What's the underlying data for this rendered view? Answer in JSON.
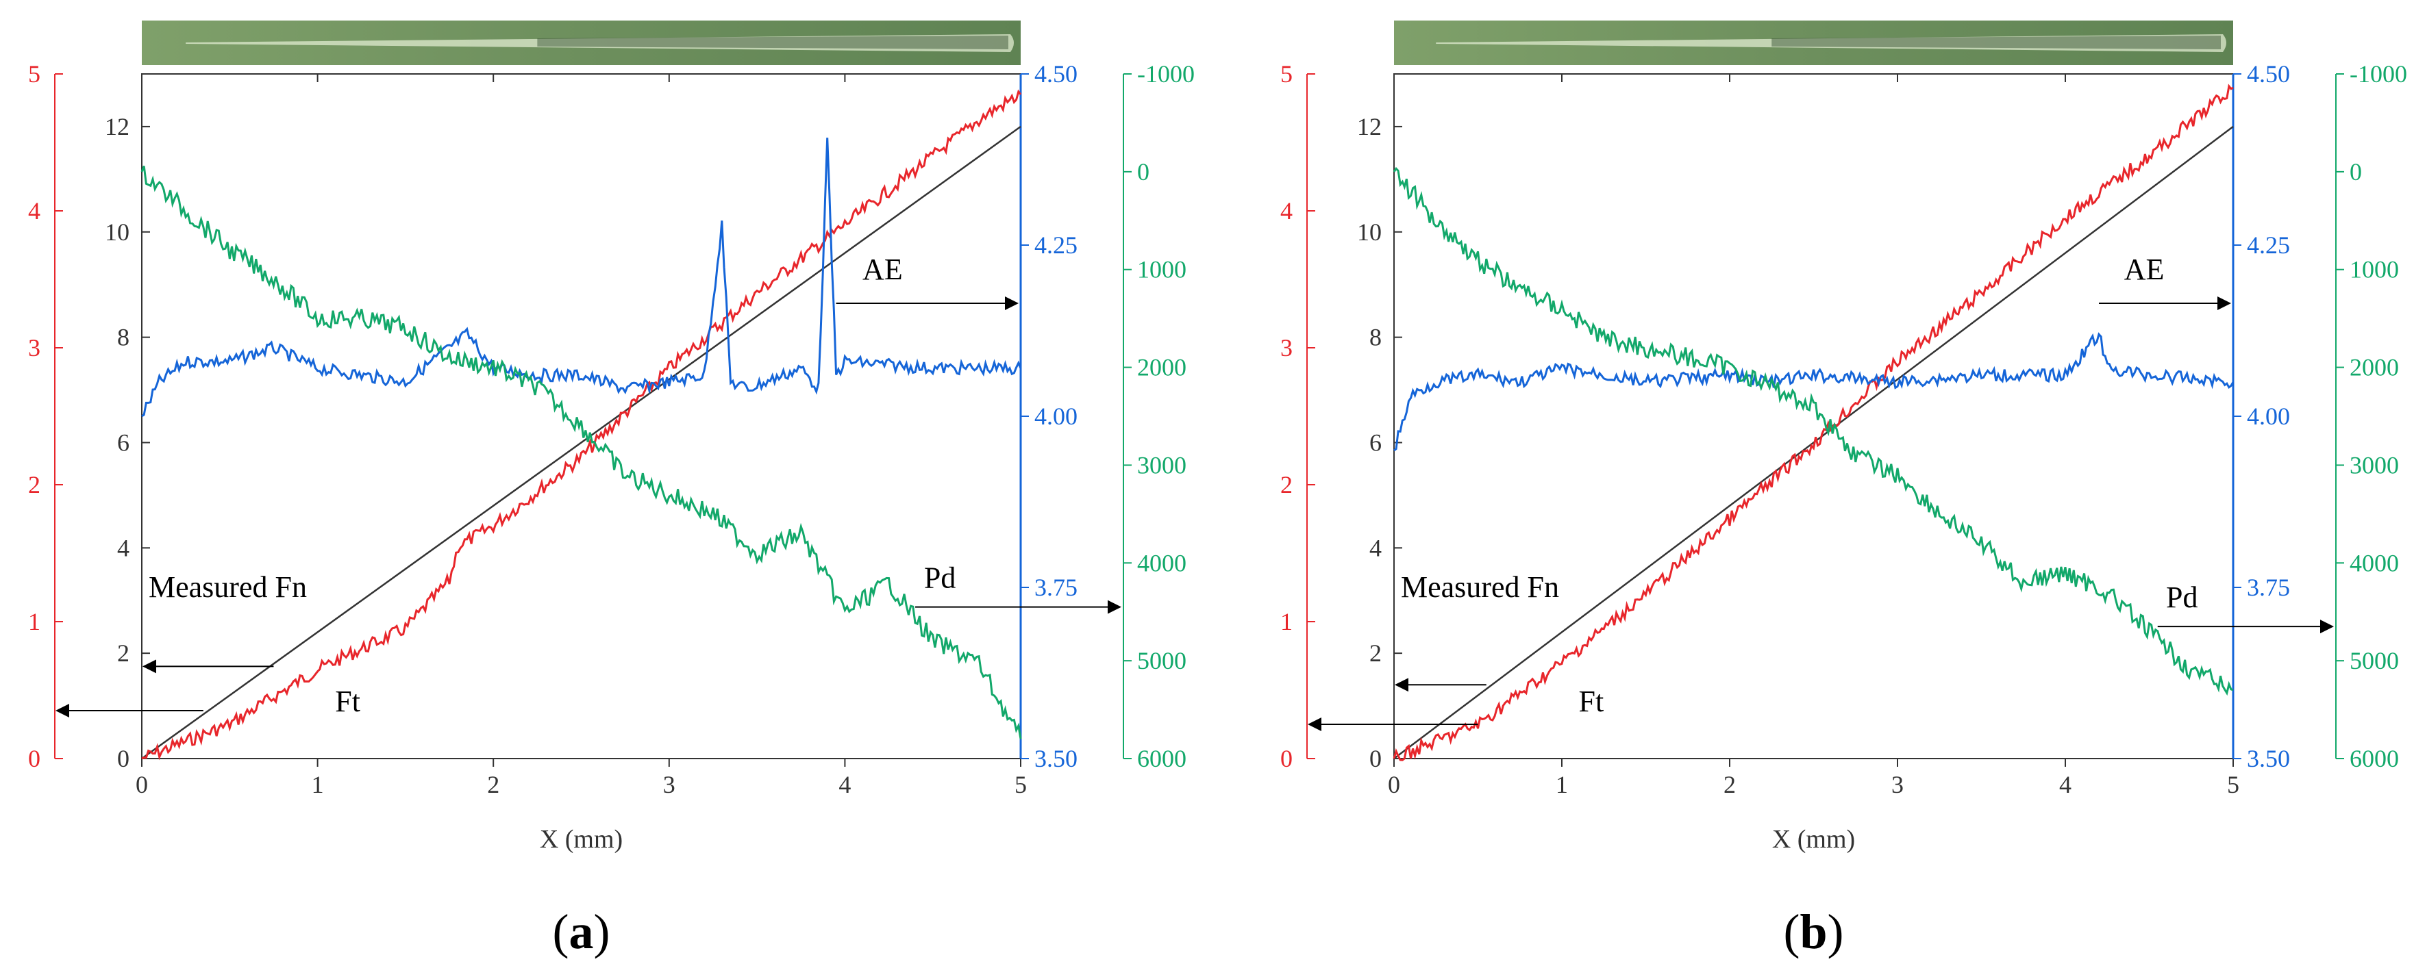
{
  "colors": {
    "ft": "#e8262b",
    "fn": "#333333",
    "ae": "#1565d8",
    "pd": "#12a86a",
    "axis": "#333333"
  },
  "chart_data": [
    {
      "type": "line",
      "panel_label": "a",
      "xlabel": "X (mm)",
      "xlim": [
        0,
        5
      ],
      "x_ticks": [
        "0",
        "1",
        "2",
        "3",
        "4",
        "5"
      ],
      "axes": {
        "fn": {
          "ylim": [
            0,
            13
          ],
          "ticks": [
            "0",
            "2",
            "4",
            "6",
            "8",
            "10",
            "12"
          ]
        },
        "ft": {
          "ylim": [
            0,
            5
          ],
          "ticks": [
            "0",
            "1",
            "2",
            "3",
            "4",
            "5"
          ]
        },
        "ae": {
          "ylim": [
            3.5,
            4.5
          ],
          "ticks": [
            "3.50",
            "3.75",
            "4.00",
            "4.25",
            "4.50"
          ]
        },
        "pd": {
          "ylim": [
            -1000,
            6000
          ],
          "reversed": true,
          "ticks": [
            "-1000",
            "0",
            "1000",
            "2000",
            "3000",
            "4000",
            "5000",
            "6000"
          ]
        }
      },
      "annotations": [
        "Measured Fn",
        "Ft",
        "AE",
        "Pd"
      ],
      "series": [
        {
          "name": "Measured Fn",
          "axis": "fn",
          "x": [
            0,
            5
          ],
          "y": [
            0,
            12
          ]
        },
        {
          "name": "Ft",
          "axis": "ft",
          "x": [
            0,
            0.5,
            1,
            1.5,
            1.75,
            1.8,
            2,
            2.5,
            3,
            3.5,
            4,
            4.5,
            4.8,
            5
          ],
          "y": [
            0,
            0.25,
            0.65,
            0.95,
            1.3,
            1.55,
            1.7,
            2.2,
            2.85,
            3.4,
            3.9,
            4.4,
            4.7,
            4.85
          ]
        },
        {
          "name": "AE",
          "axis": "ae",
          "x": [
            0,
            0.1,
            0.25,
            0.5,
            0.75,
            1,
            1.25,
            1.5,
            1.85,
            2,
            2.25,
            2.5,
            2.75,
            3,
            3.2,
            3.3,
            3.35,
            3.45,
            3.75,
            3.85,
            3.9,
            3.95,
            4,
            4.5,
            5
          ],
          "y": [
            4.0,
            4.05,
            4.08,
            4.08,
            4.1,
            4.07,
            4.06,
            4.05,
            4.12,
            4.07,
            4.06,
            4.06,
            4.04,
            4.05,
            4.06,
            4.28,
            4.05,
            4.04,
            4.07,
            4.04,
            4.4,
            4.06,
            4.08,
            4.07,
            4.07
          ]
        },
        {
          "name": "Pd",
          "axis": "pd",
          "x": [
            0,
            0.25,
            0.5,
            0.75,
            1,
            1.25,
            1.5,
            1.75,
            2,
            2.25,
            2.5,
            2.75,
            3,
            3.25,
            3.5,
            3.75,
            4,
            4.25,
            4.5,
            4.75,
            5
          ],
          "y": [
            0,
            400,
            800,
            1100,
            1500,
            1500,
            1600,
            1900,
            2000,
            2200,
            2600,
            3100,
            3300,
            3500,
            3900,
            3700,
            4500,
            4200,
            4800,
            5000,
            5800
          ]
        }
      ]
    },
    {
      "type": "line",
      "panel_label": "b",
      "xlabel": "X (mm)",
      "xlim": [
        0,
        5
      ],
      "x_ticks": [
        "0",
        "1",
        "2",
        "3",
        "4",
        "5"
      ],
      "axes": {
        "fn": {
          "ylim": [
            0,
            13
          ],
          "ticks": [
            "0",
            "2",
            "4",
            "6",
            "8",
            "10",
            "12"
          ]
        },
        "ft": {
          "ylim": [
            0,
            5
          ],
          "ticks": [
            "0",
            "1",
            "2",
            "3",
            "4",
            "5"
          ]
        },
        "ae": {
          "ylim": [
            3.5,
            4.5
          ],
          "ticks": [
            "3.50",
            "3.75",
            "4.00",
            "4.25",
            "4.50"
          ]
        },
        "pd": {
          "ylim": [
            -1000,
            6000
          ],
          "reversed": true,
          "ticks": [
            "-1000",
            "0",
            "1000",
            "2000",
            "3000",
            "4000",
            "5000",
            "6000"
          ]
        }
      },
      "annotations": [
        "Measured Fn",
        "Ft",
        "AE",
        "Pd"
      ],
      "series": [
        {
          "name": "Measured Fn",
          "axis": "fn",
          "x": [
            0,
            5
          ],
          "y": [
            0,
            12
          ]
        },
        {
          "name": "Ft",
          "axis": "ft",
          "x": [
            0,
            0.5,
            1,
            1.5,
            2,
            2.5,
            3,
            3.5,
            4,
            4.5,
            4.8,
            5
          ],
          "y": [
            0,
            0.25,
            0.7,
            1.2,
            1.75,
            2.3,
            2.9,
            3.4,
            3.95,
            4.4,
            4.7,
            4.9
          ]
        },
        {
          "name": "AE",
          "axis": "ae",
          "x": [
            0,
            0.1,
            0.25,
            0.5,
            0.75,
            1,
            1.5,
            2,
            2.25,
            2.5,
            3,
            3.5,
            4,
            4.2,
            4.25,
            4.5,
            5
          ],
          "y": [
            3.95,
            4.03,
            4.05,
            4.06,
            4.05,
            4.07,
            4.05,
            4.06,
            4.05,
            4.06,
            4.05,
            4.06,
            4.06,
            4.12,
            4.07,
            4.06,
            4.05
          ]
        },
        {
          "name": "Pd",
          "axis": "pd",
          "x": [
            0,
            0.25,
            0.5,
            0.75,
            1,
            1.25,
            1.5,
            1.75,
            2,
            2.25,
            2.5,
            2.75,
            3,
            3.25,
            3.5,
            3.75,
            4,
            4.25,
            4.5,
            4.75,
            5
          ],
          "y": [
            0,
            500,
            900,
            1200,
            1400,
            1700,
            1800,
            1900,
            2000,
            2200,
            2400,
            2900,
            3100,
            3500,
            3800,
            4200,
            4100,
            4300,
            4700,
            5100,
            5300
          ]
        }
      ]
    }
  ]
}
